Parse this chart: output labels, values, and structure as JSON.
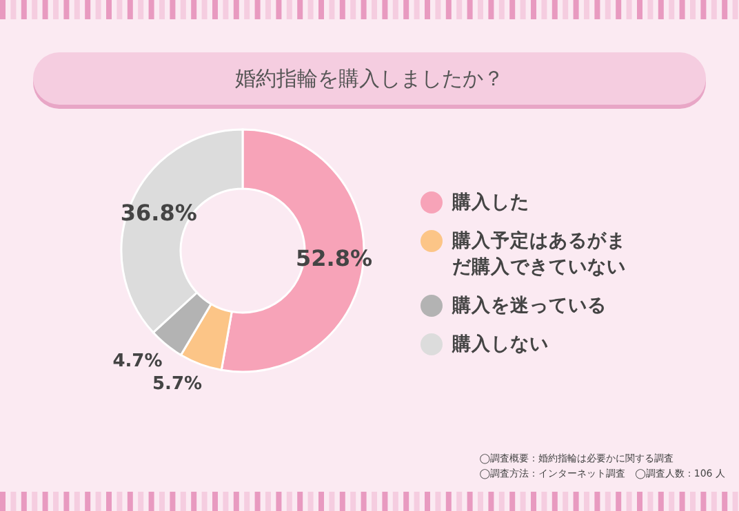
{
  "chart_data": {
    "type": "donut",
    "title": "婚約指輪を購入しましたか？",
    "categories": [
      "購入した",
      "購入予定はあるがまだ購入できていない",
      "購入を迷っている",
      "購入しない"
    ],
    "values": [
      52.8,
      5.7,
      4.7,
      36.8
    ],
    "value_labels": [
      "52.8%",
      "5.7%",
      "4.7%",
      "36.8%"
    ],
    "colors": [
      "#f7a3b8",
      "#fcc587",
      "#b3b3b3",
      "#dcdcdc"
    ],
    "legend": "right",
    "annotations": [
      "◯調査概要：婚約指輪は必要かに関する調査",
      "◯調査方法：インターネット調査　◯調査人数：106 人"
    ]
  }
}
